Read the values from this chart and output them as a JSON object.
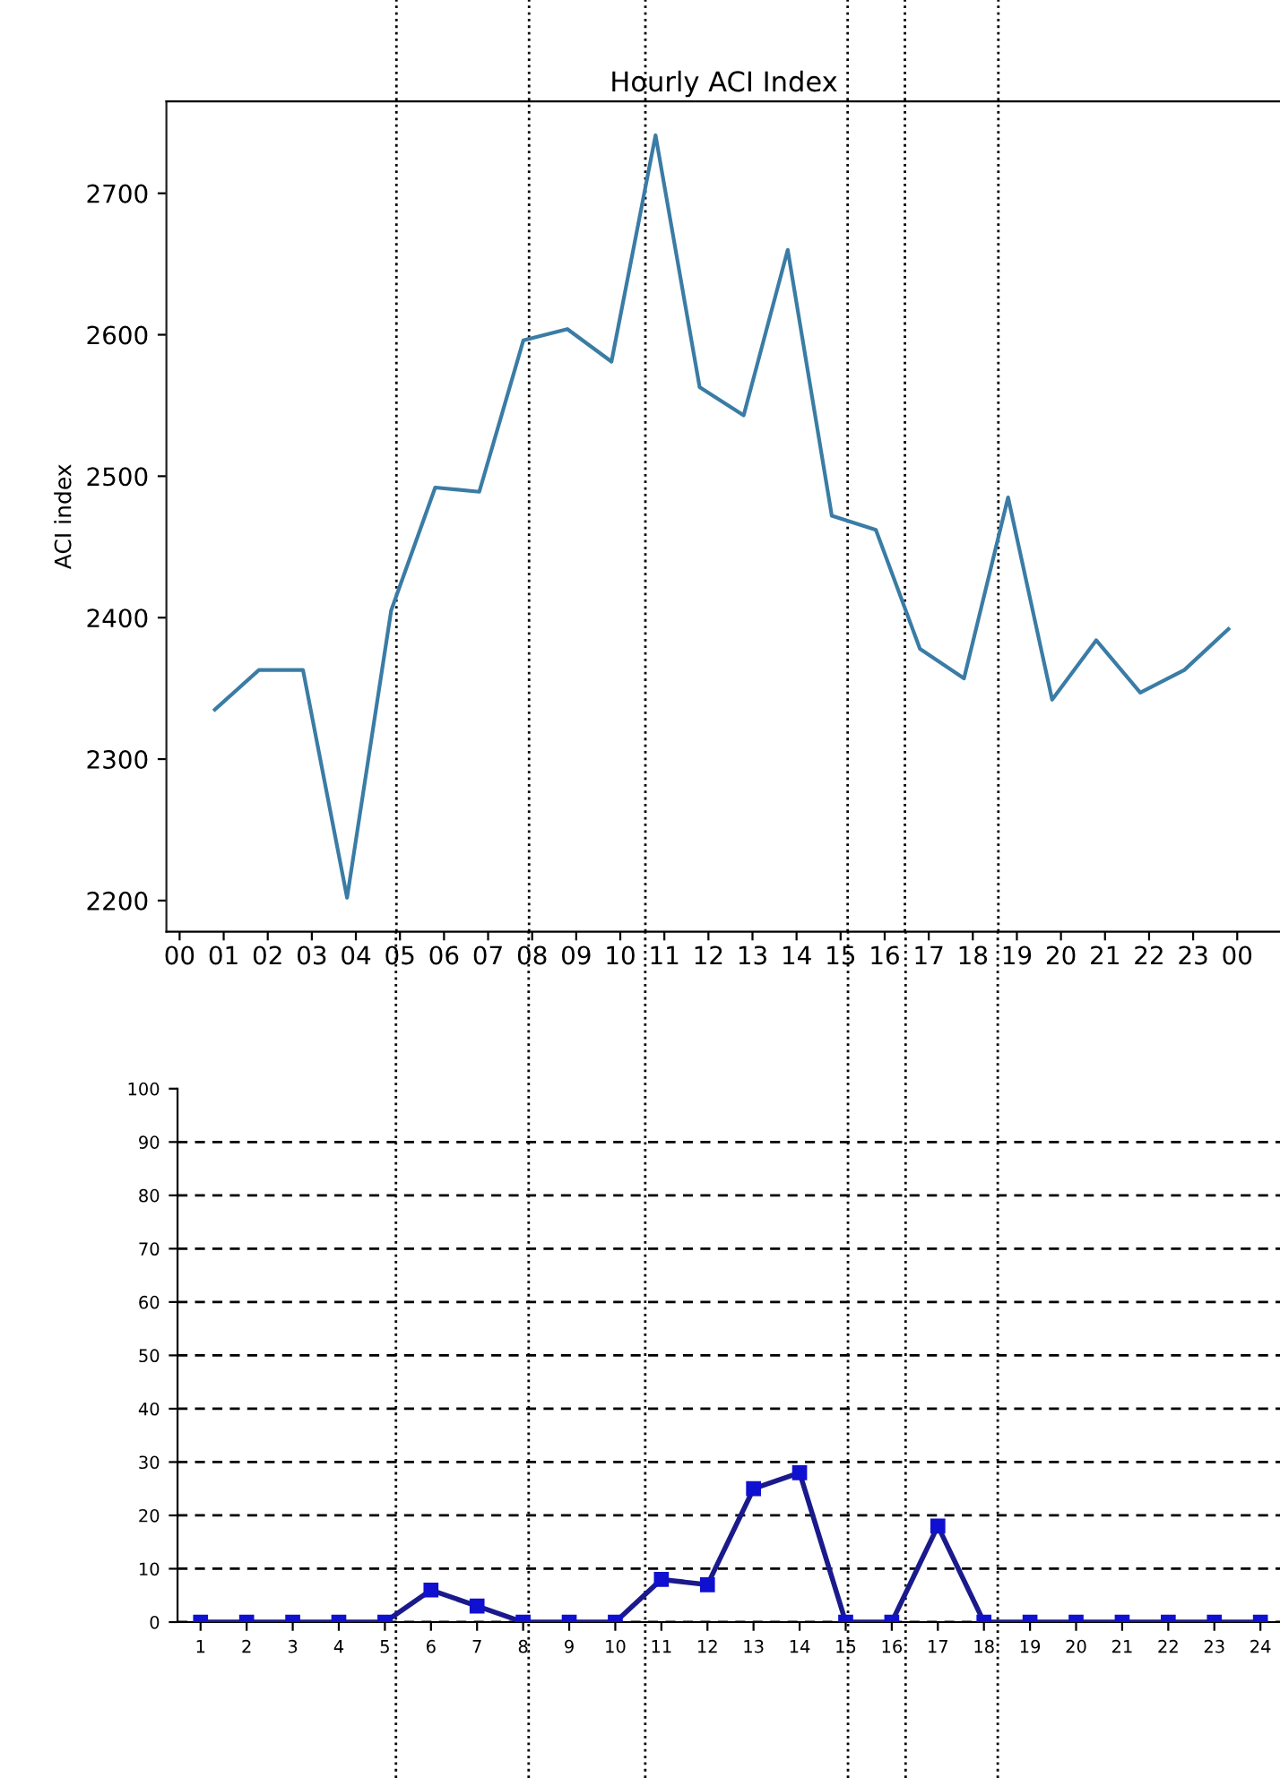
{
  "chart_data": [
    {
      "type": "line",
      "title": "Hourly ACI Index",
      "ylabel": "ACI index",
      "series": [
        {
          "color": "#3a7ca5",
          "x": [
            0.8,
            1.8,
            2.8,
            3.8,
            4.8,
            5.8,
            6.8,
            7.8,
            8.8,
            9.8,
            10.8,
            11.8,
            12.8,
            13.8,
            14.8,
            15.8,
            16.8,
            17.8,
            18.8,
            19.8,
            20.8,
            21.8,
            22.8,
            23.8
          ],
          "values": [
            2335,
            2363,
            2363,
            2202,
            2405,
            2492,
            2489,
            2596,
            2604,
            2581,
            2741,
            2563,
            2543,
            2660,
            2472,
            2462,
            2378,
            2357,
            2485,
            2342,
            2384,
            2347,
            2363,
            2392
          ]
        }
      ],
      "xlim": [
        -0.3,
        25
      ],
      "ylim": [
        2178,
        2765
      ],
      "xticks": [
        {
          "value": 0,
          "label": "00"
        },
        {
          "value": 1,
          "label": "01"
        },
        {
          "value": 2,
          "label": "02"
        },
        {
          "value": 3,
          "label": "03"
        },
        {
          "value": 4,
          "label": "04"
        },
        {
          "value": 5,
          "label": "05"
        },
        {
          "value": 6,
          "label": "06"
        },
        {
          "value": 7,
          "label": "07"
        },
        {
          "value": 8,
          "label": "08"
        },
        {
          "value": 9,
          "label": "09"
        },
        {
          "value": 10,
          "label": "10"
        },
        {
          "value": 11,
          "label": "11"
        },
        {
          "value": 12,
          "label": "12"
        },
        {
          "value": 13,
          "label": "13"
        },
        {
          "value": 14,
          "label": "14"
        },
        {
          "value": 15,
          "label": "15"
        },
        {
          "value": 16,
          "label": "16"
        },
        {
          "value": 17,
          "label": "17"
        },
        {
          "value": 18,
          "label": "18"
        },
        {
          "value": 19,
          "label": "19"
        },
        {
          "value": 20,
          "label": "20"
        },
        {
          "value": 21,
          "label": "21"
        },
        {
          "value": 22,
          "label": "22"
        },
        {
          "value": 23,
          "label": "23"
        },
        {
          "value": 24,
          "label": "00"
        }
      ],
      "yticks": [
        2200,
        2300,
        2400,
        2500,
        2600,
        2700
      ],
      "ref_lines": [
        {
          "axis": "x",
          "value": 4.92,
          "color": "#000000",
          "line_style": "dotted"
        },
        {
          "axis": "x",
          "value": 7.93,
          "color": "#000000",
          "line_style": "dotted"
        },
        {
          "axis": "x",
          "value": 10.57,
          "color": "#000000",
          "line_style": "dotted"
        },
        {
          "axis": "x",
          "value": 15.16,
          "color": "#000000",
          "line_style": "dotted"
        },
        {
          "axis": "x",
          "value": 16.46,
          "color": "#000000",
          "line_style": "dotted"
        },
        {
          "axis": "x",
          "value": 18.58,
          "color": "#000000",
          "line_style": "dotted"
        }
      ],
      "grid": false,
      "marker": "none",
      "line_style": "solid"
    },
    {
      "type": "line",
      "series": [
        {
          "color": "#1a1a8c",
          "x": [
            1,
            2,
            3,
            4,
            5,
            6,
            7,
            8,
            9,
            10,
            11,
            12,
            13,
            14,
            15,
            16,
            17,
            18,
            19,
            20,
            21,
            22,
            23,
            24
          ],
          "values": [
            0,
            0,
            0,
            0,
            0,
            6,
            3,
            0,
            0,
            0,
            8,
            7,
            25,
            28,
            0,
            0,
            18,
            0,
            0,
            0,
            0,
            0,
            0,
            0
          ]
        }
      ],
      "xlim": [
        0.5,
        24.5
      ],
      "ylim": [
        0,
        100
      ],
      "xticks": [
        1,
        2,
        3,
        4,
        5,
        6,
        7,
        8,
        9,
        10,
        11,
        12,
        13,
        14,
        15,
        16,
        17,
        18,
        19,
        20,
        21,
        22,
        23,
        24
      ],
      "yticks": [
        0,
        10,
        20,
        30,
        40,
        50,
        60,
        70,
        80,
        90,
        100
      ],
      "ref_lines": [
        {
          "axis": "x",
          "value": 5.24,
          "color": "#000000",
          "line_style": "dotted"
        },
        {
          "axis": "x",
          "value": 8.12,
          "color": "#000000",
          "line_style": "dotted"
        },
        {
          "axis": "x",
          "value": 10.65,
          "color": "#000000",
          "line_style": "dotted"
        },
        {
          "axis": "x",
          "value": 15.05,
          "color": "#000000",
          "line_style": "dotted"
        },
        {
          "axis": "x",
          "value": 16.3,
          "color": "#000000",
          "line_style": "dotted"
        },
        {
          "axis": "x",
          "value": 18.3,
          "color": "#000000",
          "line_style": "dotted"
        }
      ],
      "grid": "y",
      "marker": "square",
      "line_style": "solid"
    }
  ]
}
